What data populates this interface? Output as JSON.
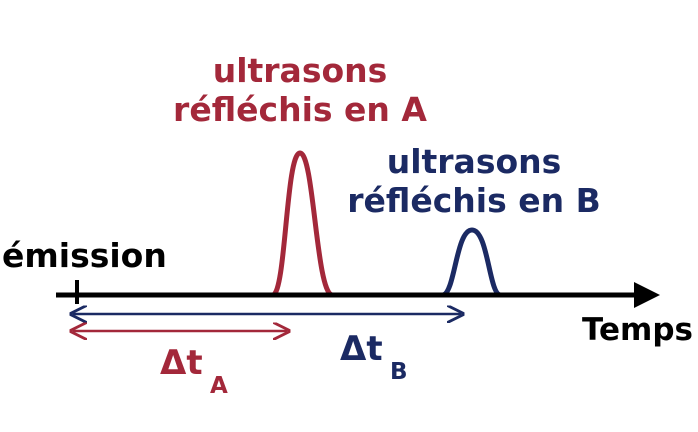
{
  "labels": {
    "emission": "émission",
    "time_axis": "Temps",
    "echo_a_line1": "ultrasons",
    "echo_a_line2": "réfléchis en A",
    "echo_b_line1": "ultrasons",
    "echo_b_line2": "réfléchis en B",
    "delta_symbol": "Δt",
    "delta_a_subscript": "A",
    "delta_b_subscript": "B"
  },
  "colors": {
    "axis": "#000000",
    "echo_a": "#a3283a",
    "echo_b": "#1b2a63"
  }
}
